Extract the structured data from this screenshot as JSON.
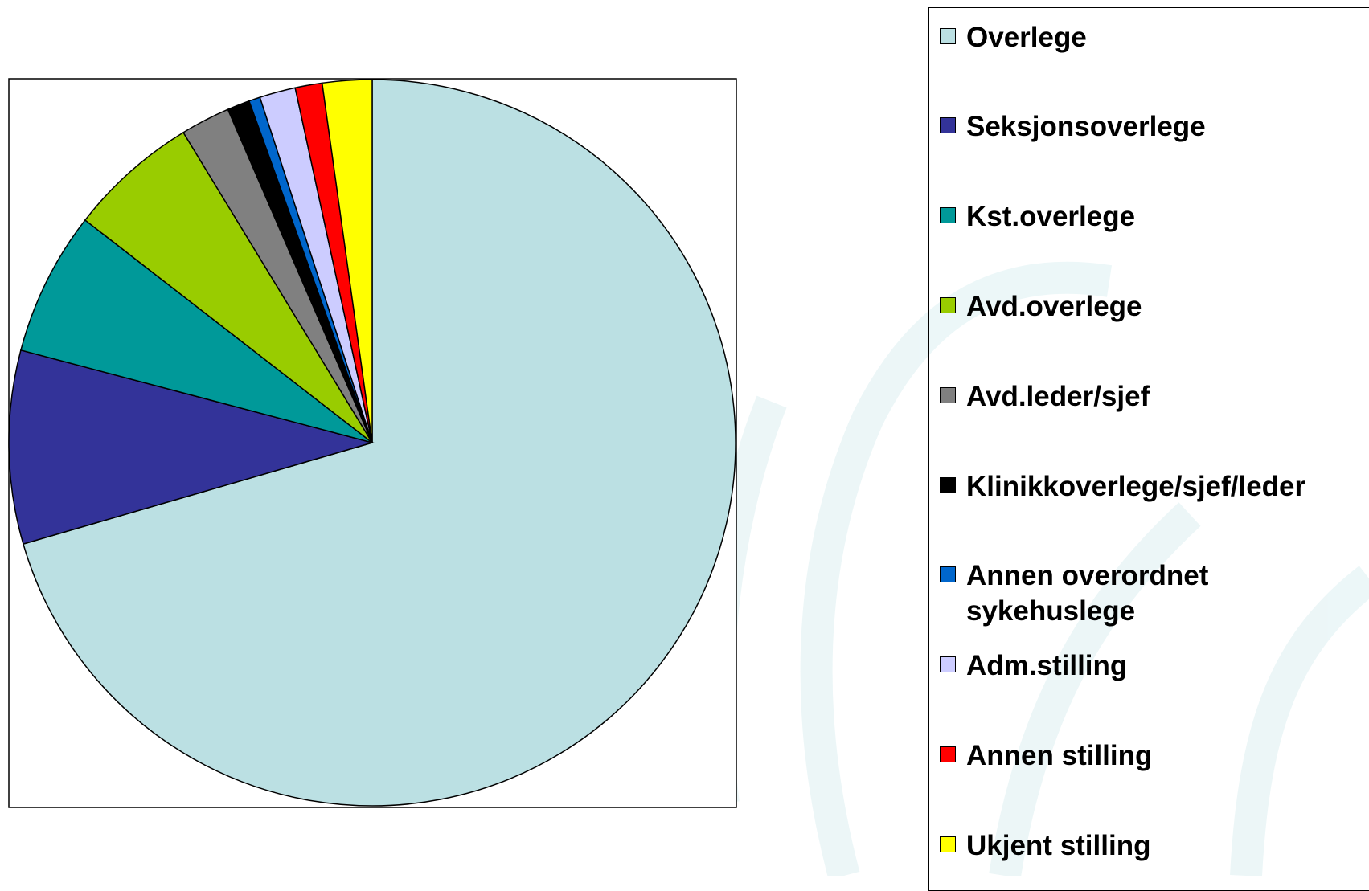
{
  "chart_data": {
    "type": "pie",
    "categories": [
      "Overlege",
      "Seksjonsoverlege",
      "Kst.overlege",
      "Avd.overlege",
      "Avd.leder/sjef",
      "Klinikkoverlege/sjef/leder",
      "Annen overordnet sykehuslege",
      "Adm.stilling",
      "Annen stilling",
      "Ukjent stilling"
    ],
    "values": [
      70.5,
      8.6,
      6.4,
      5.8,
      2.2,
      1.0,
      0.5,
      1.6,
      1.2,
      2.2
    ],
    "colors": [
      "#bbe0e3",
      "#333399",
      "#009999",
      "#99cc00",
      "#808080",
      "#000000",
      "#0066cc",
      "#ccccff",
      "#ff0000",
      "#ffff00"
    ],
    "legend": "right"
  }
}
